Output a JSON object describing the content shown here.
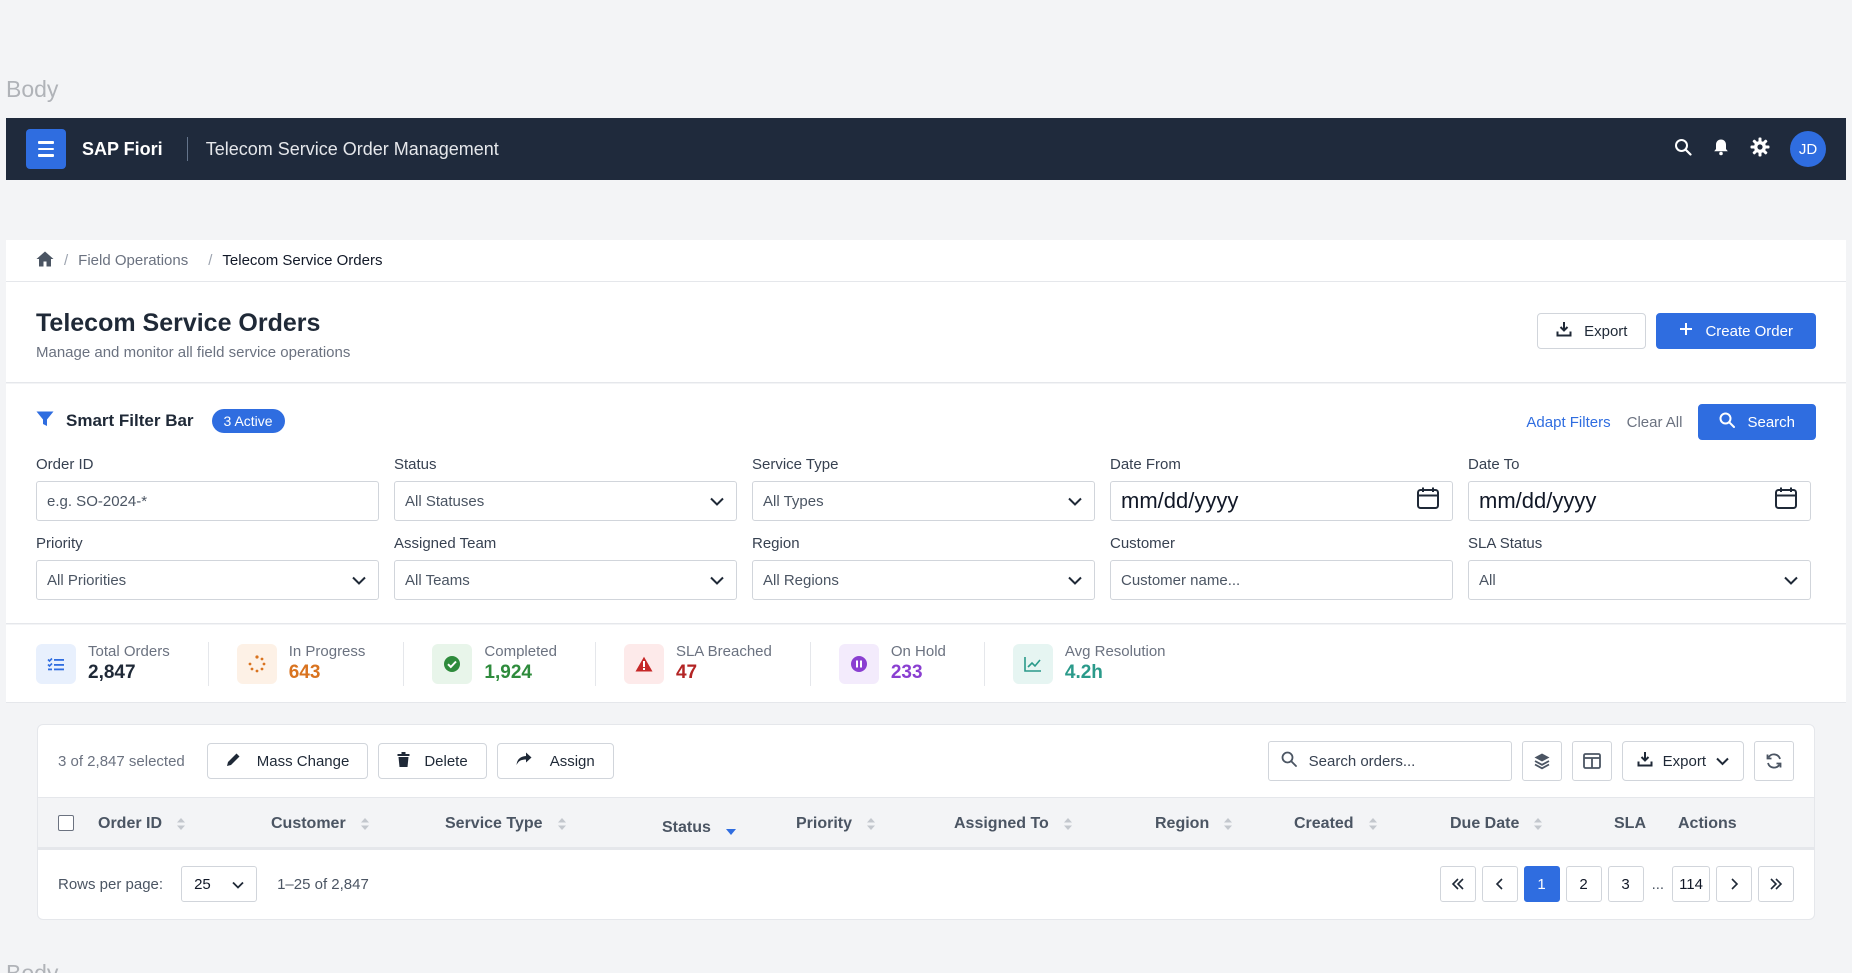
{
  "page_labels": {
    "top": "Body",
    "bottom": "Body"
  },
  "shell": {
    "brand": "SAP Fiori",
    "app_title": "Telecom Service Order Management",
    "avatar_initials": "JD",
    "icons": [
      "menu-icon",
      "search-icon",
      "bell-icon",
      "gear-icon"
    ]
  },
  "breadcrumb": {
    "items": [
      "Field Operations",
      "Telecom Service Orders"
    ],
    "separator": "/"
  },
  "header": {
    "title": "Telecom Service Orders",
    "subtitle": "Manage and monitor all field service operations",
    "export_label": "Export",
    "create_label": "Create Order"
  },
  "filter_bar": {
    "title": "Smart Filter Bar",
    "badge": "3 Active",
    "adapt_label": "Adapt Filters",
    "clear_label": "Clear All",
    "search_label": "Search",
    "fields": [
      {
        "label": "Order ID",
        "value": "e.g. SO-2024-*",
        "kind": "text"
      },
      {
        "label": "Status",
        "value": "All Statuses",
        "kind": "select"
      },
      {
        "label": "Service Type",
        "value": "All Types",
        "kind": "select"
      },
      {
        "label": "Date From",
        "value": "mm/dd/yyyy",
        "kind": "date"
      },
      {
        "label": "Date To",
        "value": "mm/dd/yyyy",
        "kind": "date"
      },
      {
        "label": "Priority",
        "value": "All Priorities",
        "kind": "select"
      },
      {
        "label": "Assigned Team",
        "value": "All Teams",
        "kind": "select"
      },
      {
        "label": "Region",
        "value": "All Regions",
        "kind": "select"
      },
      {
        "label": "Customer",
        "value": "Customer name...",
        "kind": "text"
      },
      {
        "label": "SLA Status",
        "value": "All",
        "kind": "select"
      }
    ]
  },
  "kpis": [
    {
      "label": "Total Orders",
      "value": "2,847",
      "color": "#1f2937",
      "icon": "checklist-icon",
      "icon_color": "#2f6de0",
      "icon_bg": "#e8f0fd"
    },
    {
      "label": "In Progress",
      "value": "643",
      "color": "#d9731f",
      "icon": "spinner-icon",
      "icon_color": "#d9731f",
      "icon_bg": "#fdf1e6"
    },
    {
      "label": "Completed",
      "value": "1,924",
      "color": "#2e8b3c",
      "icon": "check-circle-icon",
      "icon_color": "#2e8b3c",
      "icon_bg": "#e8f5ea"
    },
    {
      "label": "SLA Breached",
      "value": "47",
      "color": "#b32424",
      "icon": "warning-icon",
      "icon_color": "#c62828",
      "icon_bg": "#fdeaea"
    },
    {
      "label": "On Hold",
      "value": "233",
      "color": "#8a3fd1",
      "icon": "pause-icon",
      "icon_color": "#8a3fd1",
      "icon_bg": "#f3ebfc"
    },
    {
      "label": "Avg Resolution",
      "value": "4.2h",
      "color": "#2a9a8a",
      "icon": "trend-icon",
      "icon_color": "#2a9a8a",
      "icon_bg": "#e6f5f2"
    }
  ],
  "table": {
    "selection_text": "3 of 2,847 selected",
    "mass_change_label": "Mass Change",
    "delete_label": "Delete",
    "assign_label": "Assign",
    "search_placeholder": "Search orders...",
    "export_label": "Export",
    "columns": [
      "Order ID",
      "Customer",
      "Service Type",
      "Status",
      "Priority",
      "Assigned To",
      "Region",
      "Created",
      "Due Date",
      "SLA",
      "Actions"
    ],
    "sorted_column": "Status",
    "rows_per_page_label": "Rows per page:",
    "rows_per_page": "25",
    "range_text": "1–25 of 2,847",
    "pages": [
      "1",
      "2",
      "3"
    ],
    "ellipsis": "...",
    "last_page": "114",
    "current_page": "1"
  },
  "colors": {
    "accent": "#2f6de0",
    "shell_bg": "#1f2a3c"
  }
}
